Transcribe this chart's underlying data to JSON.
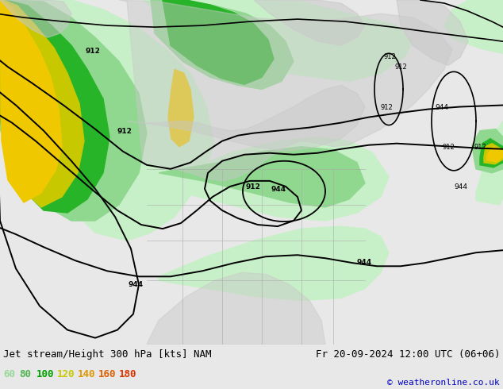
{
  "title_left": "Jet stream/Height 300 hPa [kts] NAM",
  "title_right": "Fr 20-09-2024 12:00 UTC (06+06)",
  "copyright": "© weatheronline.co.uk",
  "legend_values": [
    "60",
    "80",
    "100",
    "120",
    "140",
    "160",
    "180"
  ],
  "legend_label_colors": [
    "#98d898",
    "#50b450",
    "#00a000",
    "#c8c800",
    "#e09600",
    "#e06000",
    "#dc3200"
  ],
  "bg_color": "#e8e8e8",
  "ocean_color": "#f0f0f0",
  "land_color": "#c8c8c8",
  "title_color": "#000000",
  "copyright_color": "#0000bb",
  "title_fontsize": 9,
  "legend_fontsize": 9,
  "wind_colors": {
    "60": "#c8f0c8",
    "80": "#90d890",
    "100": "#28b428",
    "120": "#c8c800",
    "140": "#f0c800",
    "160": "#f09600",
    "180": "#f03200"
  }
}
